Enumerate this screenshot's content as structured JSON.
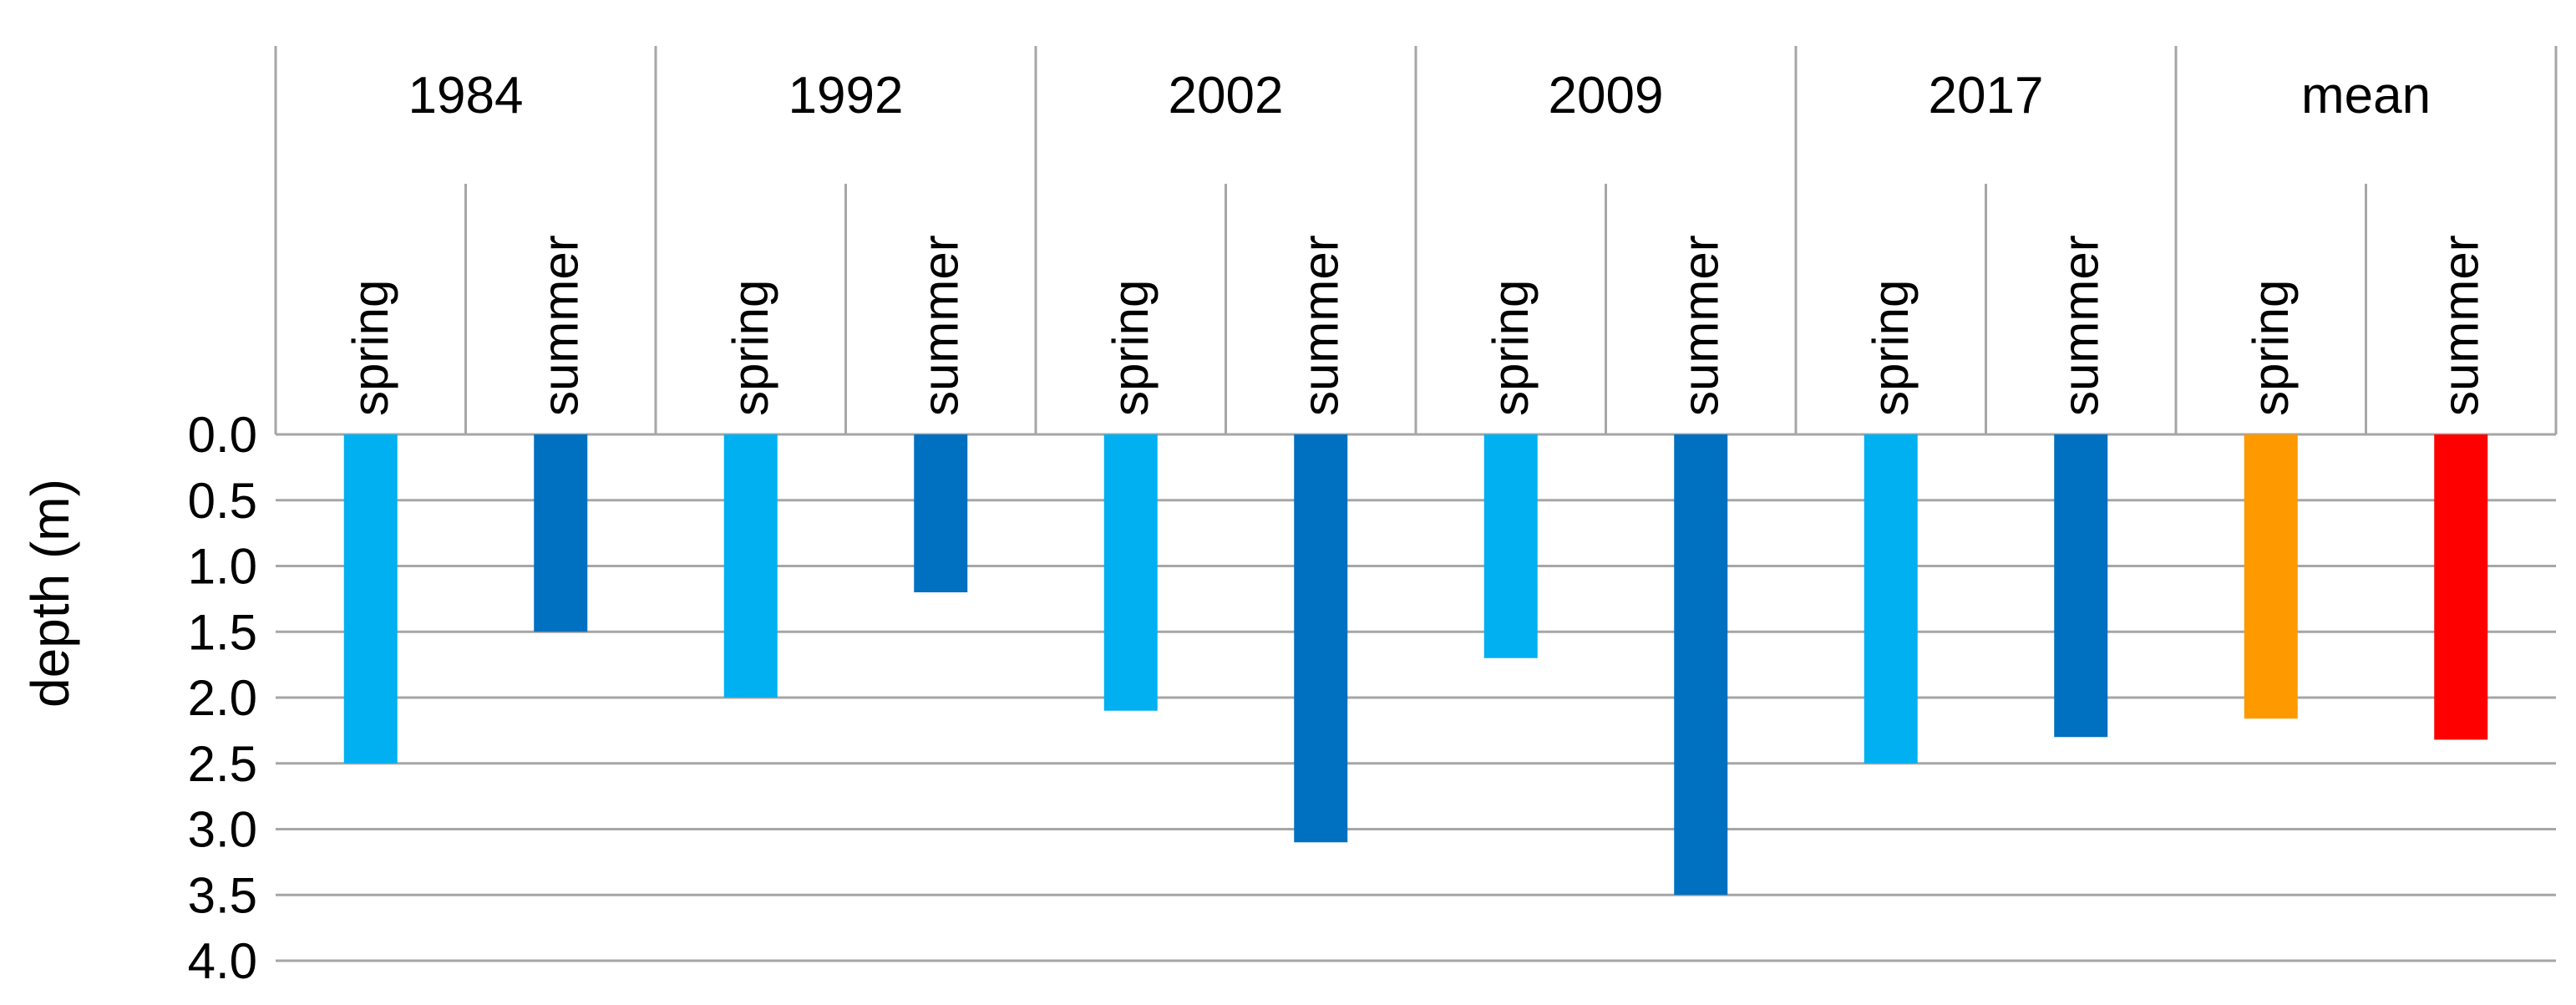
{
  "chart_data": {
    "type": "bar",
    "ylabel": "depth (m)",
    "y_axis_inverted": true,
    "ylim": [
      0,
      4
    ],
    "y_ticks": [
      "0.0",
      "0.5",
      "1.0",
      "1.5",
      "2.0",
      "2.5",
      "3.0",
      "3.5",
      "4.0"
    ],
    "grid": true,
    "groups": [
      {
        "label": "1984",
        "bars": [
          {
            "label": "spring",
            "value": 2.5,
            "color": "#00B0F0"
          },
          {
            "label": "summer",
            "value": 1.5,
            "color": "#0070C0"
          }
        ]
      },
      {
        "label": "1992",
        "bars": [
          {
            "label": "spring",
            "value": 2.0,
            "color": "#00B0F0"
          },
          {
            "label": "summer",
            "value": 1.2,
            "color": "#0070C0"
          }
        ]
      },
      {
        "label": "2002",
        "bars": [
          {
            "label": "spring",
            "value": 2.1,
            "color": "#00B0F0"
          },
          {
            "label": "summer",
            "value": 3.1,
            "color": "#0070C0"
          }
        ]
      },
      {
        "label": "2009",
        "bars": [
          {
            "label": "spring",
            "value": 1.7,
            "color": "#00B0F0"
          },
          {
            "label": "summer",
            "value": 3.5,
            "color": "#0070C0"
          }
        ]
      },
      {
        "label": "2017",
        "bars": [
          {
            "label": "spring",
            "value": 2.5,
            "color": "#00B0F0"
          },
          {
            "label": "summer",
            "value": 2.3,
            "color": "#0070C0"
          }
        ]
      },
      {
        "label": "mean",
        "bars": [
          {
            "label": "spring",
            "value": 2.16,
            "color": "#FF9900"
          },
          {
            "label": "summer",
            "value": 2.32,
            "color": "#FF0000"
          }
        ]
      }
    ]
  }
}
